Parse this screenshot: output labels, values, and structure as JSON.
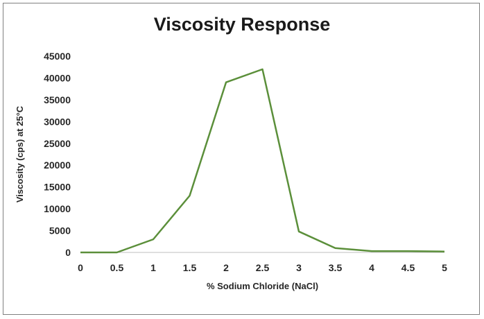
{
  "chart_data": {
    "type": "line",
    "title": "Viscosity Response",
    "xlabel": "% Sodium Chloride (NaCl)",
    "ylabel": "Viscosity (cps) at 25°C",
    "x": [
      0,
      0.5,
      1,
      1.5,
      2,
      2.5,
      3,
      3.5,
      4,
      4.5,
      5
    ],
    "x_tick_labels": [
      "0",
      "0.5",
      "1",
      "1.5",
      "2",
      "2.5",
      "3",
      "3.5",
      "4",
      "4.5",
      "5"
    ],
    "y_tick_labels": [
      "0",
      "5000",
      "10000",
      "15000",
      "20000",
      "25000",
      "30000",
      "35000",
      "40000",
      "45000"
    ],
    "xlim": [
      0,
      5
    ],
    "ylim": [
      0,
      45000
    ],
    "grid": false,
    "series": [
      {
        "color": "#5b8f3a",
        "values": [
          0,
          0,
          3000,
          13000,
          39000,
          42000,
          4800,
          1000,
          300,
          300,
          200
        ]
      }
    ]
  }
}
